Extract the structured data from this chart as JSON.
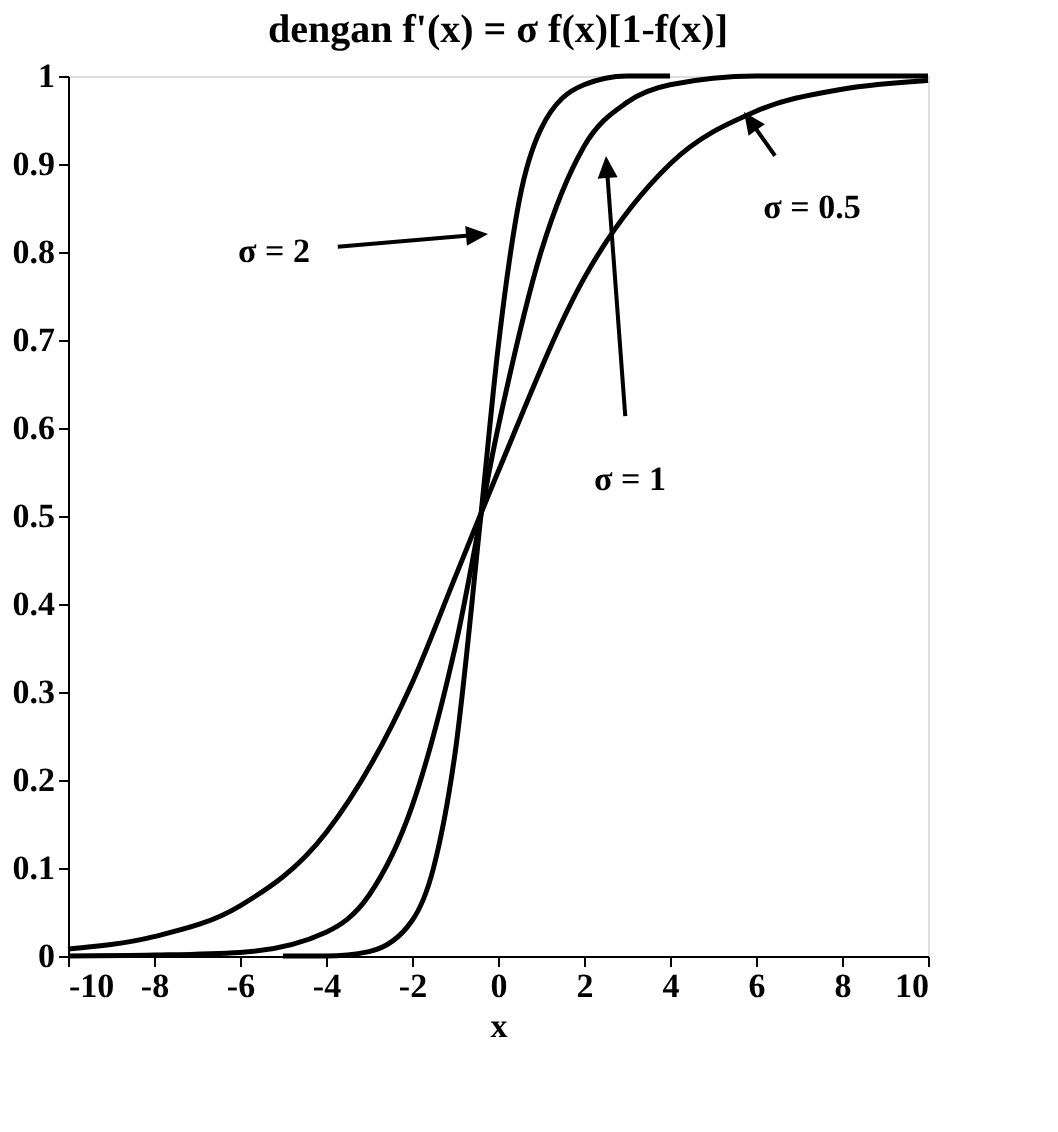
{
  "chart_data": {
    "type": "line",
    "title": "dengan f'(x) = σ f(x)[1-f(x)]",
    "xlabel": "x",
    "xlim": [
      -10,
      10
    ],
    "xticks": [
      -10,
      -8,
      -6,
      -4,
      -2,
      0,
      2,
      4,
      6,
      8,
      10
    ],
    "ylim": [
      0,
      1
    ],
    "yticks": [
      0,
      0.1,
      0.2,
      0.3,
      0.4,
      0.5,
      0.6,
      0.7,
      0.8,
      0.9,
      1
    ],
    "grid": false,
    "marker": "none",
    "line_style": "solid",
    "series": [
      {
        "color": "#000000",
        "x": [
          -10,
          -8,
          -6,
          -4,
          -2,
          -1,
          0,
          2,
          4,
          6,
          8,
          10
        ],
        "values": [
          0.008,
          0.022,
          0.057,
          0.14,
          0.31,
          0.43,
          0.55,
          0.77,
          0.9,
          0.96,
          0.985,
          0.995
        ]
      },
      {
        "color": "#000000",
        "x": [
          -10,
          -8,
          -6,
          -4,
          -3,
          -2,
          -1,
          0,
          1,
          2,
          3,
          4,
          6,
          8,
          10
        ],
        "values": [
          0,
          0.001,
          0.004,
          0.027,
          0.069,
          0.17,
          0.35,
          0.6,
          0.8,
          0.92,
          0.97,
          0.99,
          1,
          1,
          1
        ]
      },
      {
        "color": "#000000",
        "x": [
          -5,
          -4,
          -3,
          -2,
          -1.5,
          -1,
          -0.4,
          0,
          0.5,
          1,
          2,
          3,
          4
        ],
        "values": [
          0,
          0,
          0.005,
          0.04,
          0.1,
          0.23,
          0.5,
          0.69,
          0.86,
          0.94,
          0.99,
          1,
          1
        ]
      }
    ],
    "annotations": [
      "σ = 2",
      "σ = 1",
      "σ = 0.5"
    ]
  }
}
